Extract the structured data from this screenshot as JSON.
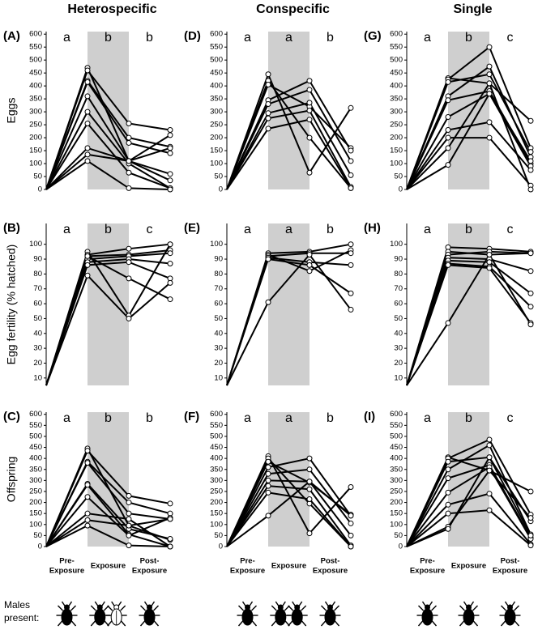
{
  "chart_data": [
    {
      "type": "line",
      "label": "(A)",
      "title": "Heterospecific",
      "ylabel": "Eggs",
      "group_letters": [
        "a",
        "b",
        "b"
      ],
      "x": [
        0,
        1,
        2,
        3
      ],
      "xlim": [
        0,
        3
      ],
      "shade": [
        1,
        2
      ],
      "ylim": [
        0,
        610
      ],
      "yticks": [
        0,
        50,
        100,
        150,
        200,
        250,
        300,
        350,
        400,
        450,
        500,
        550,
        600
      ],
      "color": "#000000",
      "series": [
        {
          "values": [
            0,
            470,
            110,
            35
          ]
        },
        {
          "values": [
            0,
            460,
            255,
            230
          ]
        },
        {
          "values": [
            0,
            420,
            200,
            165
          ]
        },
        {
          "values": [
            0,
            415,
            180,
            140
          ]
        },
        {
          "values": [
            0,
            360,
            110,
            60
          ]
        },
        {
          "values": [
            0,
            300,
            100,
            5
          ]
        },
        {
          "values": [
            0,
            255,
            65,
            5
          ]
        },
        {
          "values": [
            0,
            160,
            110,
            210
          ]
        },
        {
          "values": [
            0,
            135,
            110,
            160
          ]
        },
        {
          "values": [
            0,
            110,
            5,
            0
          ]
        }
      ]
    },
    {
      "type": "line",
      "label": "(D)",
      "title": "Conspecific",
      "group_letters": [
        "a",
        "a",
        "b"
      ],
      "x": [
        0,
        1,
        2,
        3
      ],
      "xlim": [
        0,
        3
      ],
      "shade": [
        1,
        2
      ],
      "ylim": [
        0,
        610
      ],
      "yticks": [
        0,
        50,
        100,
        150,
        200,
        250,
        300,
        350,
        400,
        450,
        500,
        550,
        600
      ],
      "color": "#000000",
      "series": [
        {
          "values": [
            0,
            445,
            65,
            315
          ]
        },
        {
          "values": [
            0,
            420,
            200,
            5
          ]
        },
        {
          "values": [
            0,
            405,
            320,
            160
          ]
        },
        {
          "values": [
            0,
            345,
            420,
            150
          ]
        },
        {
          "values": [
            0,
            330,
            385,
            110
          ]
        },
        {
          "values": [
            0,
            295,
            335,
            55
          ]
        },
        {
          "values": [
            0,
            275,
            305,
            10
          ]
        },
        {
          "values": [
            0,
            235,
            270,
            5
          ]
        }
      ]
    },
    {
      "type": "line",
      "label": "(G)",
      "title": "Single",
      "group_letters": [
        "a",
        "b",
        "c"
      ],
      "x": [
        0,
        1,
        2,
        3
      ],
      "xlim": [
        0,
        3
      ],
      "shade": [
        1,
        2
      ],
      "ylim": [
        0,
        610
      ],
      "yticks": [
        0,
        50,
        100,
        150,
        200,
        250,
        300,
        350,
        400,
        450,
        500,
        550,
        600
      ],
      "color": "#000000",
      "series": [
        {
          "values": [
            0,
            430,
            410,
            265
          ]
        },
        {
          "values": [
            0,
            425,
            550,
            160
          ]
        },
        {
          "values": [
            0,
            415,
            445,
            145
          ]
        },
        {
          "values": [
            0,
            360,
            475,
            125
          ]
        },
        {
          "values": [
            0,
            345,
            380,
            100
          ]
        },
        {
          "values": [
            0,
            280,
            370,
            90
          ]
        },
        {
          "values": [
            0,
            230,
            260,
            75
          ]
        },
        {
          "values": [
            0,
            200,
            200,
            15
          ]
        },
        {
          "values": [
            0,
            160,
            410,
            0
          ]
        },
        {
          "values": [
            0,
            95,
            370,
            110
          ]
        }
      ]
    },
    {
      "type": "line",
      "label": "(B)",
      "ylabel": "Egg fertility (% hatched)",
      "group_letters": [
        "a",
        "b",
        "c"
      ],
      "x": [
        0,
        1,
        2,
        3
      ],
      "xlim": [
        0,
        3
      ],
      "shade": [
        1,
        2
      ],
      "ylim": [
        5,
        114
      ],
      "yticks": [
        10,
        20,
        30,
        40,
        50,
        60,
        70,
        80,
        90,
        100
      ],
      "color": "#000000",
      "series": [
        {
          "values": [
            5,
            95,
            52,
            100
          ]
        },
        {
          "values": [
            5,
            93,
            97,
            100
          ]
        },
        {
          "values": [
            5,
            92,
            93,
            96
          ]
        },
        {
          "values": [
            5,
            90,
            92,
            94
          ]
        },
        {
          "values": [
            5,
            88,
            90,
            87
          ]
        },
        {
          "values": [
            5,
            86,
            88,
            77
          ]
        },
        {
          "values": [
            5,
            79,
            50,
            74
          ]
        },
        {
          "values": [
            5,
            92,
            77,
            63
          ]
        }
      ]
    },
    {
      "type": "line",
      "label": "(E)",
      "group_letters": [
        "a",
        "a",
        "b"
      ],
      "x": [
        0,
        1,
        2,
        3
      ],
      "xlim": [
        0,
        3
      ],
      "shade": [
        1,
        2
      ],
      "ylim": [
        5,
        114
      ],
      "yticks": [
        10,
        20,
        30,
        40,
        50,
        60,
        70,
        80,
        90,
        100
      ],
      "color": "#000000",
      "series": [
        {
          "values": [
            5,
            94,
            95,
            100
          ]
        },
        {
          "values": [
            5,
            93,
            82,
            96
          ]
        },
        {
          "values": [
            5,
            92,
            94,
            94
          ]
        },
        {
          "values": [
            5,
            91,
            88,
            86
          ]
        },
        {
          "values": [
            5,
            90,
            86,
            67
          ]
        },
        {
          "values": [
            5,
            61,
            93,
            56
          ]
        }
      ]
    },
    {
      "type": "line",
      "label": "(H)",
      "group_letters": [
        "a",
        "b",
        "c"
      ],
      "x": [
        0,
        1,
        2,
        3
      ],
      "xlim": [
        0,
        3
      ],
      "shade": [
        1,
        2
      ],
      "ylim": [
        5,
        114
      ],
      "yticks": [
        10,
        20,
        30,
        40,
        50,
        60,
        70,
        80,
        90,
        100
      ],
      "color": "#000000",
      "series": [
        {
          "values": [
            5,
            98,
            97,
            95
          ]
        },
        {
          "values": [
            5,
            95,
            93,
            94
          ]
        },
        {
          "values": [
            5,
            93,
            95,
            94
          ]
        },
        {
          "values": [
            5,
            91,
            90,
            82
          ]
        },
        {
          "values": [
            5,
            89,
            88,
            67
          ]
        },
        {
          "values": [
            5,
            87,
            85,
            58
          ]
        },
        {
          "values": [
            5,
            86,
            84,
            47
          ]
        },
        {
          "values": [
            5,
            47,
            93,
            46
          ]
        }
      ]
    },
    {
      "type": "line",
      "label": "(C)",
      "ylabel": "Offspring",
      "group_letters": [
        "a",
        "b",
        "b"
      ],
      "x": [
        0,
        1,
        2,
        3
      ],
      "xlim": [
        0,
        3
      ],
      "shade": [
        1,
        2
      ],
      "ylim": [
        0,
        610
      ],
      "yticks": [
        0,
        50,
        100,
        150,
        200,
        250,
        300,
        350,
        400,
        450,
        500,
        550,
        600
      ],
      "color": "#000000",
      "xticks": [
        {
          "value": 0.5,
          "label": [
            "Pre-",
            "Exposure"
          ]
        },
        {
          "value": 1.5,
          "label": [
            "Exposure"
          ]
        },
        {
          "value": 2.5,
          "label": [
            "Post-",
            "Exposure"
          ]
        }
      ],
      "series": [
        {
          "values": [
            0,
            445,
            95,
            30
          ]
        },
        {
          "values": [
            0,
            435,
            230,
            195
          ]
        },
        {
          "values": [
            0,
            385,
            200,
            150
          ]
        },
        {
          "values": [
            0,
            380,
            150,
            125
          ]
        },
        {
          "values": [
            0,
            285,
            80,
            35
          ]
        },
        {
          "values": [
            0,
            280,
            55,
            0
          ]
        },
        {
          "values": [
            0,
            225,
            50,
            130
          ]
        },
        {
          "values": [
            0,
            150,
            125,
            0
          ]
        },
        {
          "values": [
            0,
            120,
            95,
            125
          ]
        },
        {
          "values": [
            0,
            95,
            5,
            0
          ]
        }
      ]
    },
    {
      "type": "line",
      "label": "(F)",
      "group_letters": [
        "a",
        "a",
        "b"
      ],
      "x": [
        0,
        1,
        2,
        3
      ],
      "xlim": [
        0,
        3
      ],
      "shade": [
        1,
        2
      ],
      "ylim": [
        0,
        610
      ],
      "yticks": [
        0,
        50,
        100,
        150,
        200,
        250,
        300,
        350,
        400,
        450,
        500,
        550,
        600
      ],
      "color": "#000000",
      "xticks": [
        {
          "value": 0.5,
          "label": [
            "Pre-",
            "Exposure"
          ]
        },
        {
          "value": 1.5,
          "label": [
            "Exposure"
          ]
        },
        {
          "value": 2.5,
          "label": [
            "Post-",
            "Exposure"
          ]
        }
      ],
      "series": [
        {
          "values": [
            0,
            410,
            60,
            270
          ]
        },
        {
          "values": [
            0,
            400,
            195,
            0
          ]
        },
        {
          "values": [
            0,
            385,
            290,
            145
          ]
        },
        {
          "values": [
            0,
            360,
            400,
            140
          ]
        },
        {
          "values": [
            0,
            330,
            350,
            105
          ]
        },
        {
          "values": [
            0,
            300,
            295,
            50
          ]
        },
        {
          "values": [
            0,
            275,
            260,
            5
          ]
        },
        {
          "values": [
            0,
            245,
            215,
            0
          ]
        },
        {
          "values": [
            0,
            140,
            295,
            140
          ]
        }
      ]
    },
    {
      "type": "line",
      "label": "(I)",
      "group_letters": [
        "a",
        "b",
        "c"
      ],
      "x": [
        0,
        1,
        2,
        3
      ],
      "xlim": [
        0,
        3
      ],
      "shade": [
        1,
        2
      ],
      "ylim": [
        0,
        610
      ],
      "yticks": [
        0,
        50,
        100,
        150,
        200,
        250,
        300,
        350,
        400,
        450,
        500,
        550,
        600
      ],
      "color": "#000000",
      "xticks": [
        {
          "value": 0.5,
          "label": [
            "Pre-",
            "Exposure"
          ]
        },
        {
          "value": 1.5,
          "label": [
            "Exposure"
          ]
        },
        {
          "value": 2.5,
          "label": [
            "Post-",
            "Exposure"
          ]
        }
      ],
      "series": [
        {
          "values": [
            0,
            405,
            345,
            250
          ]
        },
        {
          "values": [
            0,
            400,
            485,
            145
          ]
        },
        {
          "values": [
            0,
            385,
            405,
            115
          ]
        },
        {
          "values": [
            0,
            350,
            460,
            55
          ]
        },
        {
          "values": [
            0,
            310,
            370,
            40
          ]
        },
        {
          "values": [
            0,
            245,
            360,
            35
          ]
        },
        {
          "values": [
            0,
            190,
            240,
            10
          ]
        },
        {
          "values": [
            0,
            150,
            165,
            5
          ]
        },
        {
          "values": [
            0,
            90,
            345,
            130
          ]
        },
        {
          "values": [
            0,
            80,
            405,
            50
          ]
        }
      ]
    }
  ],
  "footer": {
    "label": [
      "Males",
      "present:"
    ]
  }
}
